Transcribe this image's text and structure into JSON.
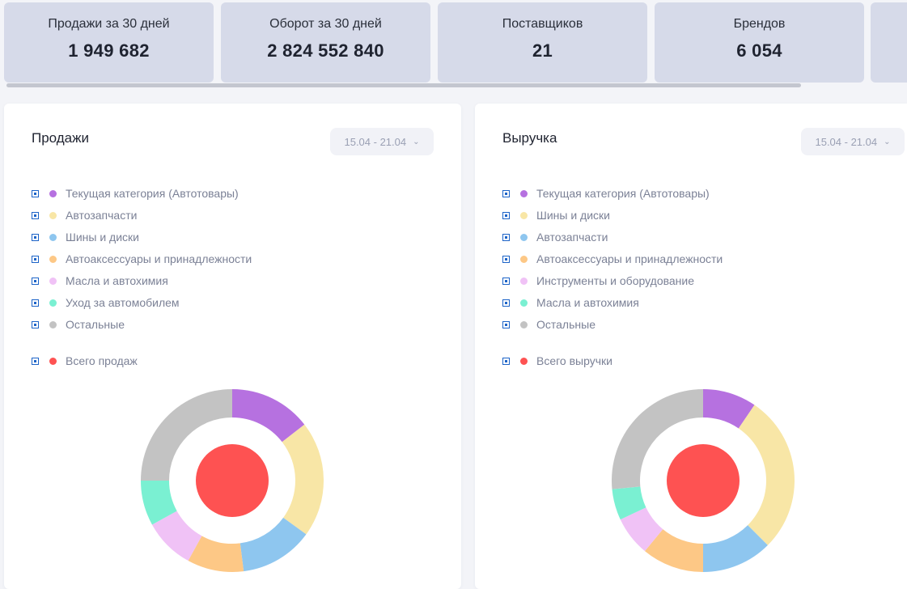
{
  "stats": [
    {
      "label": "Продажи за 30 дней",
      "value": "1 949 682"
    },
    {
      "label": "Оборот за 30 дней",
      "value": "2 824 552 840"
    },
    {
      "label": "Поставщиков",
      "value": "21"
    },
    {
      "label": "Брендов",
      "value": "6 054"
    },
    {
      "label": "",
      "value": ""
    }
  ],
  "panels": [
    {
      "title": "Продажи",
      "date_range": "15.04 - 21.04",
      "legend": [
        {
          "label": "Текущая категория (Автотовары)",
          "color": "#b671e0"
        },
        {
          "label": "Автозапчасти",
          "color": "#f8e6a6"
        },
        {
          "label": "Шины и диски",
          "color": "#8ec6ef"
        },
        {
          "label": "Автоаксессуары и принадлежности",
          "color": "#fdc886"
        },
        {
          "label": "Масла и автохимия",
          "color": "#f0c2f6"
        },
        {
          "label": "Уход за автомобилем",
          "color": "#7af0d2"
        },
        {
          "label": "Остальные",
          "color": "#c3c3c3"
        }
      ],
      "total": {
        "label": "Всего продаж",
        "color": "#fe5252"
      },
      "chart_data": {
        "type": "pie",
        "style": "donut",
        "slices": [
          {
            "label": "Текущая категория (Автотовары)",
            "value": 14.5
          },
          {
            "label": "Автозапчасти",
            "value": 20.5
          },
          {
            "label": "Шины и диски",
            "value": 13.0
          },
          {
            "label": "Автоаксессуары и принадлежности",
            "value": 10.0
          },
          {
            "label": "Масла и автохимия",
            "value": 9.0
          },
          {
            "label": "Уход за автомобилем",
            "value": 8.0
          },
          {
            "label": "Остальные",
            "value": 25.0
          }
        ]
      }
    },
    {
      "title": "Выручка",
      "date_range": "15.04 - 21.04",
      "legend": [
        {
          "label": "Текущая категория (Автотовары)",
          "color": "#b671e0"
        },
        {
          "label": "Шины и диски",
          "color": "#f8e6a6"
        },
        {
          "label": "Автозапчасти",
          "color": "#8ec6ef"
        },
        {
          "label": "Автоаксессуары и принадлежности",
          "color": "#fdc886"
        },
        {
          "label": "Инструменты и оборудование",
          "color": "#f0c2f6"
        },
        {
          "label": "Масла и автохимия",
          "color": "#7af0d2"
        },
        {
          "label": "Остальные",
          "color": "#c3c3c3"
        }
      ],
      "total": {
        "label": "Всего выручки",
        "color": "#fe5252"
      },
      "chart_data": {
        "type": "pie",
        "style": "donut",
        "slices": [
          {
            "label": "Текущая категория (Автотовары)",
            "value": 9.5
          },
          {
            "label": "Шины и диски",
            "value": 28.0
          },
          {
            "label": "Автозапчасти",
            "value": 12.5
          },
          {
            "label": "Автоаксессуары и принадлежности",
            "value": 11.0
          },
          {
            "label": "Инструменты и оборудование",
            "value": 7.0
          },
          {
            "label": "Масла и автохимия",
            "value": 5.5
          },
          {
            "label": "Остальные",
            "value": 26.5
          }
        ]
      }
    }
  ]
}
